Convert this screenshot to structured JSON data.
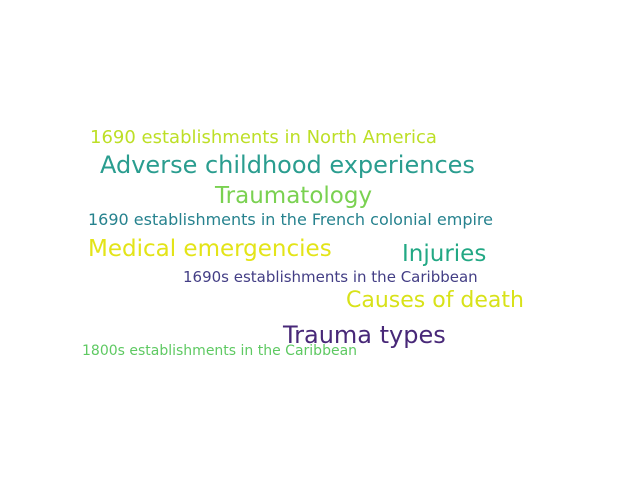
{
  "word_cloud": {
    "words": [
      {
        "text": "1690 establishments in North America",
        "color": "#bddf26"
      },
      {
        "text": "Adverse childhood experiences",
        "color": "#2a9d8f"
      },
      {
        "text": "Traumatology",
        "color": "#7ad151"
      },
      {
        "text": "1690 establishments in the French colonial empire",
        "color": "#26828e"
      },
      {
        "text": "Medical emergencies",
        "color": "#e3e418"
      },
      {
        "text": "Injuries",
        "color": "#22a884"
      },
      {
        "text": "1690s establishments in the Caribbean",
        "color": "#433e85"
      },
      {
        "text": "Causes of death",
        "color": "#d8e219"
      },
      {
        "text": "Trauma types",
        "color": "#482878"
      },
      {
        "text": "1800s establishments in the Caribbean",
        "color": "#5ec962"
      }
    ]
  }
}
